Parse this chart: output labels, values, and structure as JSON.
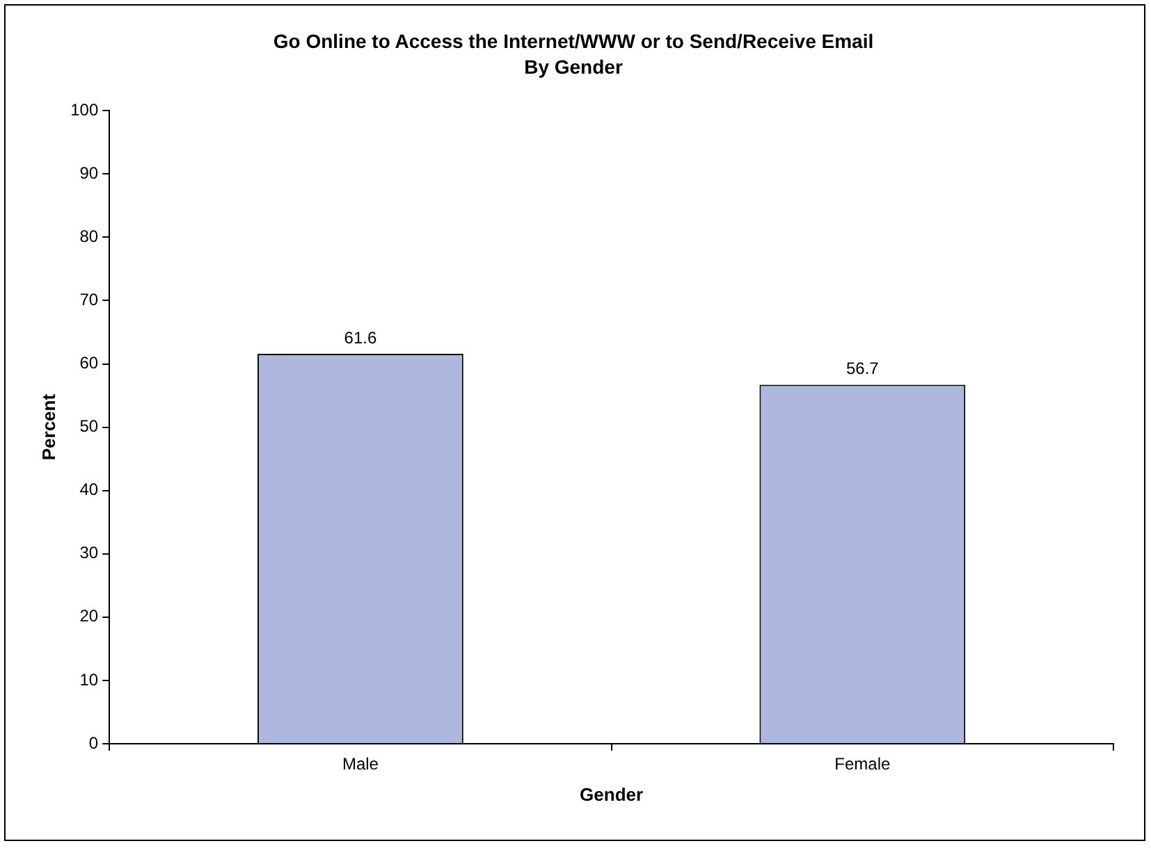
{
  "chart_data": {
    "type": "bar",
    "title": "Go Online to Access the Internet/WWW or to Send/Receive Email",
    "subtitle": "By Gender",
    "xlabel": "Gender",
    "ylabel": "Percent",
    "categories": [
      "Male",
      "Female"
    ],
    "values": [
      61.6,
      56.7
    ],
    "color": "#aeb7dd",
    "ylim": [
      0,
      100
    ],
    "yticks": [
      0,
      10,
      20,
      30,
      40,
      50,
      60,
      70,
      80,
      90,
      100
    ],
    "data_labels": true
  }
}
